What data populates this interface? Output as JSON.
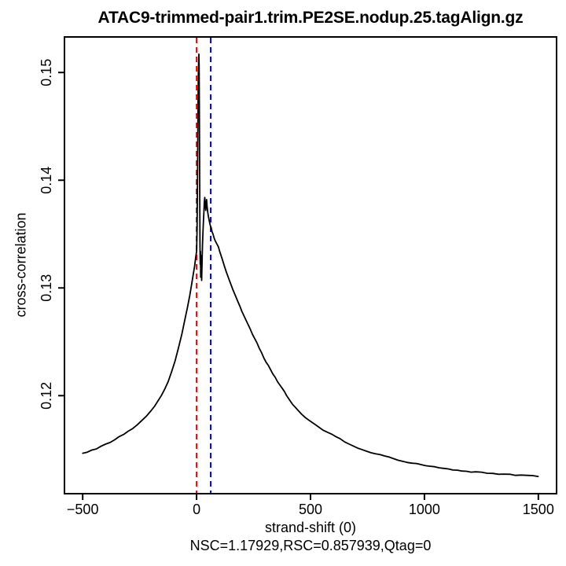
{
  "header": {
    "title": "ATAC9-trimmed-pair1.trim.PE2SE.nodup.25.tagAlign.gz"
  },
  "footer": {
    "xlabel": "strand-shift (0)",
    "subtitle": "NSC=1.17929,RSC=0.857939,Qtag=0"
  },
  "side": {
    "ylabel": "cross-correlation"
  },
  "chart_data": {
    "type": "line",
    "title": "ATAC9-trimmed-pair1.trim.PE2SE.nodup.25.tagAlign.gz",
    "xlabel": "strand-shift (0)",
    "ylabel": "cross-correlation",
    "subtitle": "NSC=1.17929,RSC=0.857939,Qtag=0",
    "stats": {
      "NSC": 1.17929,
      "RSC": 0.857939,
      "Qtag": 0,
      "strand_shift": 0
    },
    "xlim": [
      -580,
      1580
    ],
    "ylim": [
      0.1109,
      0.1533
    ],
    "grid": false,
    "legend": "none",
    "frame_color": "#000000",
    "x_ticks": {
      "values": [
        -500,
        0,
        500,
        1000,
        1500
      ],
      "labels": [
        "−500",
        "0",
        "500",
        "1000",
        "1500"
      ]
    },
    "y_ticks": {
      "values": [
        0.12,
        0.13,
        0.14,
        0.15
      ],
      "labels": [
        "0.12",
        "0.13",
        "0.14",
        "0.15"
      ]
    },
    "vlines": [
      {
        "name": "strand-shift-line",
        "x": 0,
        "color": "#ff0000",
        "style": "dashed"
      },
      {
        "name": "phantom-peak-line",
        "x": 62,
        "color": "#0000ff",
        "style": "dashed"
      }
    ],
    "series": [
      {
        "name": "cross-correlation-curve",
        "color": "#000000",
        "points": [
          [
            -500,
            0.11465
          ],
          [
            -480,
            0.11475
          ],
          [
            -460,
            0.11495
          ],
          [
            -440,
            0.11505
          ],
          [
            -420,
            0.1153
          ],
          [
            -400,
            0.1155
          ],
          [
            -380,
            0.11565
          ],
          [
            -360,
            0.1159
          ],
          [
            -340,
            0.1162
          ],
          [
            -320,
            0.1164
          ],
          [
            -300,
            0.1167
          ],
          [
            -280,
            0.11695
          ],
          [
            -260,
            0.1173
          ],
          [
            -240,
            0.1177
          ],
          [
            -220,
            0.1181
          ],
          [
            -200,
            0.1186
          ],
          [
            -185,
            0.119
          ],
          [
            -170,
            0.1195
          ],
          [
            -155,
            0.12
          ],
          [
            -140,
            0.1206
          ],
          [
            -125,
            0.1213
          ],
          [
            -110,
            0.1222
          ],
          [
            -95,
            0.1232
          ],
          [
            -80,
            0.1244
          ],
          [
            -65,
            0.1257
          ],
          [
            -50,
            0.1272
          ],
          [
            -40,
            0.1282
          ],
          [
            -30,
            0.1293
          ],
          [
            -22,
            0.1303
          ],
          [
            -15,
            0.1312
          ],
          [
            -9,
            0.132
          ],
          [
            -4,
            0.1328
          ],
          [
            0,
            0.1334
          ],
          [
            2,
            0.1355
          ],
          [
            4,
            0.1405
          ],
          [
            6,
            0.1462
          ],
          [
            8,
            0.1503
          ],
          [
            10,
            0.1517
          ],
          [
            11,
            0.1506
          ],
          [
            12,
            0.1468
          ],
          [
            13,
            0.1418
          ],
          [
            14,
            0.137
          ],
          [
            15,
            0.134
          ],
          [
            16,
            0.1322
          ],
          [
            17,
            0.1334
          ],
          [
            18,
            0.131
          ],
          [
            20,
            0.133
          ],
          [
            22,
            0.1307
          ],
          [
            24,
            0.1322
          ],
          [
            26,
            0.134
          ],
          [
            28,
            0.1352
          ],
          [
            30,
            0.1362
          ],
          [
            32,
            0.1371
          ],
          [
            34,
            0.138
          ],
          [
            36,
            0.1384
          ],
          [
            38,
            0.1377
          ],
          [
            40,
            0.1372
          ],
          [
            42,
            0.1378
          ],
          [
            44,
            0.1382
          ],
          [
            46,
            0.1376
          ],
          [
            49,
            0.137
          ],
          [
            52,
            0.1366
          ],
          [
            56,
            0.1362
          ],
          [
            60,
            0.1358
          ],
          [
            64,
            0.1356
          ],
          [
            68,
            0.1352
          ],
          [
            72,
            0.135
          ],
          [
            76,
            0.1347
          ],
          [
            81,
            0.1344
          ],
          [
            86,
            0.1342
          ],
          [
            91,
            0.134
          ],
          [
            96,
            0.1338
          ],
          [
            101,
            0.1334
          ],
          [
            106,
            0.1331
          ],
          [
            112,
            0.1327
          ],
          [
            118,
            0.1323
          ],
          [
            124,
            0.1319
          ],
          [
            130,
            0.1315
          ],
          [
            137,
            0.1311
          ],
          [
            144,
            0.1307
          ],
          [
            151,
            0.1303
          ],
          [
            158,
            0.1299
          ],
          [
            166,
            0.1295
          ],
          [
            174,
            0.1291
          ],
          [
            182,
            0.1287
          ],
          [
            190,
            0.1283
          ],
          [
            199,
            0.1278
          ],
          [
            208,
            0.1274
          ],
          [
            217,
            0.127
          ],
          [
            226,
            0.1266
          ],
          [
            235,
            0.1262
          ],
          [
            245,
            0.1257
          ],
          [
            255,
            0.1253
          ],
          [
            265,
            0.1249
          ],
          [
            275,
            0.1244
          ],
          [
            285,
            0.124
          ],
          [
            295,
            0.1235
          ],
          [
            305,
            0.1231
          ],
          [
            315,
            0.1228
          ],
          [
            325,
            0.1224
          ],
          [
            335,
            0.122
          ],
          [
            345,
            0.1217
          ],
          [
            355,
            0.1213
          ],
          [
            365,
            0.121
          ],
          [
            375,
            0.1207
          ],
          [
            385,
            0.1204
          ],
          [
            395,
            0.12
          ],
          [
            408,
            0.1196
          ],
          [
            421,
            0.1192
          ],
          [
            434,
            0.1189
          ],
          [
            447,
            0.1186
          ],
          [
            460,
            0.1183
          ],
          [
            475,
            0.118
          ],
          [
            494,
            0.1177
          ],
          [
            515,
            0.1174
          ],
          [
            535,
            0.1171
          ],
          [
            555,
            0.1168
          ],
          [
            575,
            0.1166
          ],
          [
            595,
            0.1164
          ],
          [
            611,
            0.1162
          ],
          [
            630,
            0.116
          ],
          [
            650,
            0.1157
          ],
          [
            670,
            0.1155
          ],
          [
            690,
            0.1153
          ],
          [
            710,
            0.1151
          ],
          [
            725,
            0.115
          ],
          [
            745,
            0.11485
          ],
          [
            765,
            0.1147
          ],
          [
            785,
            0.1146
          ],
          [
            805,
            0.11453
          ],
          [
            825,
            0.1144
          ],
          [
            845,
            0.1143
          ],
          [
            865,
            0.11415
          ],
          [
            885,
            0.114
          ],
          [
            905,
            0.1139
          ],
          [
            925,
            0.1138
          ],
          [
            945,
            0.11373
          ],
          [
            965,
            0.1137
          ],
          [
            985,
            0.1136
          ],
          [
            1005,
            0.1135
          ],
          [
            1025,
            0.11345
          ],
          [
            1045,
            0.1134
          ],
          [
            1065,
            0.1133
          ],
          [
            1085,
            0.11325
          ],
          [
            1105,
            0.1132
          ],
          [
            1125,
            0.1131
          ],
          [
            1145,
            0.11308
          ],
          [
            1165,
            0.113
          ],
          [
            1185,
            0.11298
          ],
          [
            1205,
            0.1129
          ],
          [
            1225,
            0.11293
          ],
          [
            1250,
            0.1129
          ],
          [
            1275,
            0.1128
          ],
          [
            1300,
            0.11278
          ],
          [
            1325,
            0.1127
          ],
          [
            1350,
            0.11272
          ],
          [
            1375,
            0.1127
          ],
          [
            1400,
            0.1126
          ],
          [
            1425,
            0.11263
          ],
          [
            1450,
            0.1126
          ],
          [
            1475,
            0.11258
          ],
          [
            1499,
            0.1125
          ]
        ]
      }
    ]
  }
}
